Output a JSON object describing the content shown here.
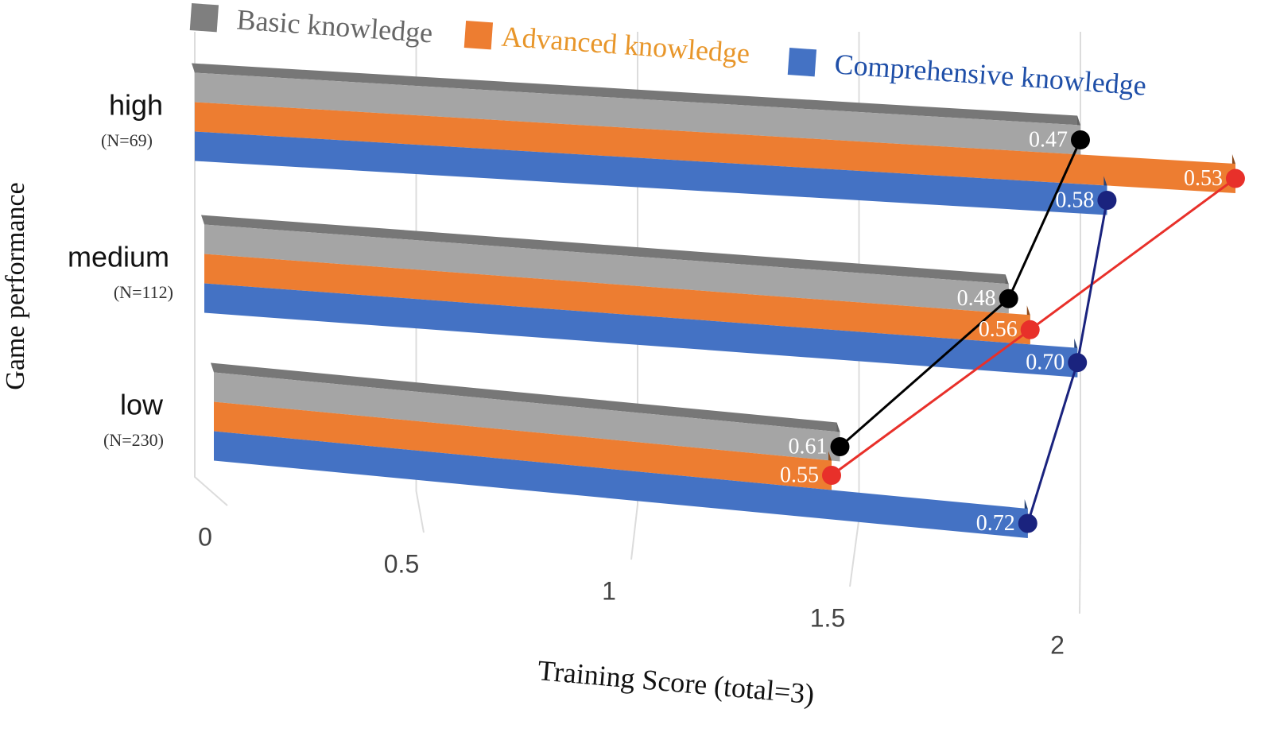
{
  "chart_data": {
    "type": "bar3d",
    "orientation": "horizontal",
    "x_axis_label": "Training Score (total=3)",
    "y_axis_label": "Game performance",
    "categories": [
      "high",
      "medium",
      "low"
    ],
    "category_notes": [
      "(N=69)",
      "(N=112)",
      "(N=230)"
    ],
    "xlim": [
      0,
      2.5
    ],
    "xticks": [
      0,
      0.5,
      1,
      1.5,
      2
    ],
    "grid": true,
    "legend_position": "top",
    "series": [
      {
        "name": "Basic knowledge",
        "color": "#a5a5a5",
        "line_color": "#000000",
        "values": [
          2.0,
          1.87,
          1.5
        ],
        "point_labels": [
          "0.47",
          "0.48",
          "0.61"
        ]
      },
      {
        "name": "Advanced knowledge",
        "color": "#ed7d31",
        "line_color": "#e8302a",
        "values": [
          2.35,
          1.92,
          1.48
        ],
        "point_labels": [
          "0.53",
          "0.56",
          "0.55"
        ]
      },
      {
        "name": "Comprehensive knowledge",
        "color": "#4472c4",
        "line_color": "#1a237e",
        "values": [
          2.06,
          2.03,
          1.95
        ],
        "point_labels": [
          "0.58",
          "0.70",
          "0.72"
        ]
      }
    ]
  }
}
